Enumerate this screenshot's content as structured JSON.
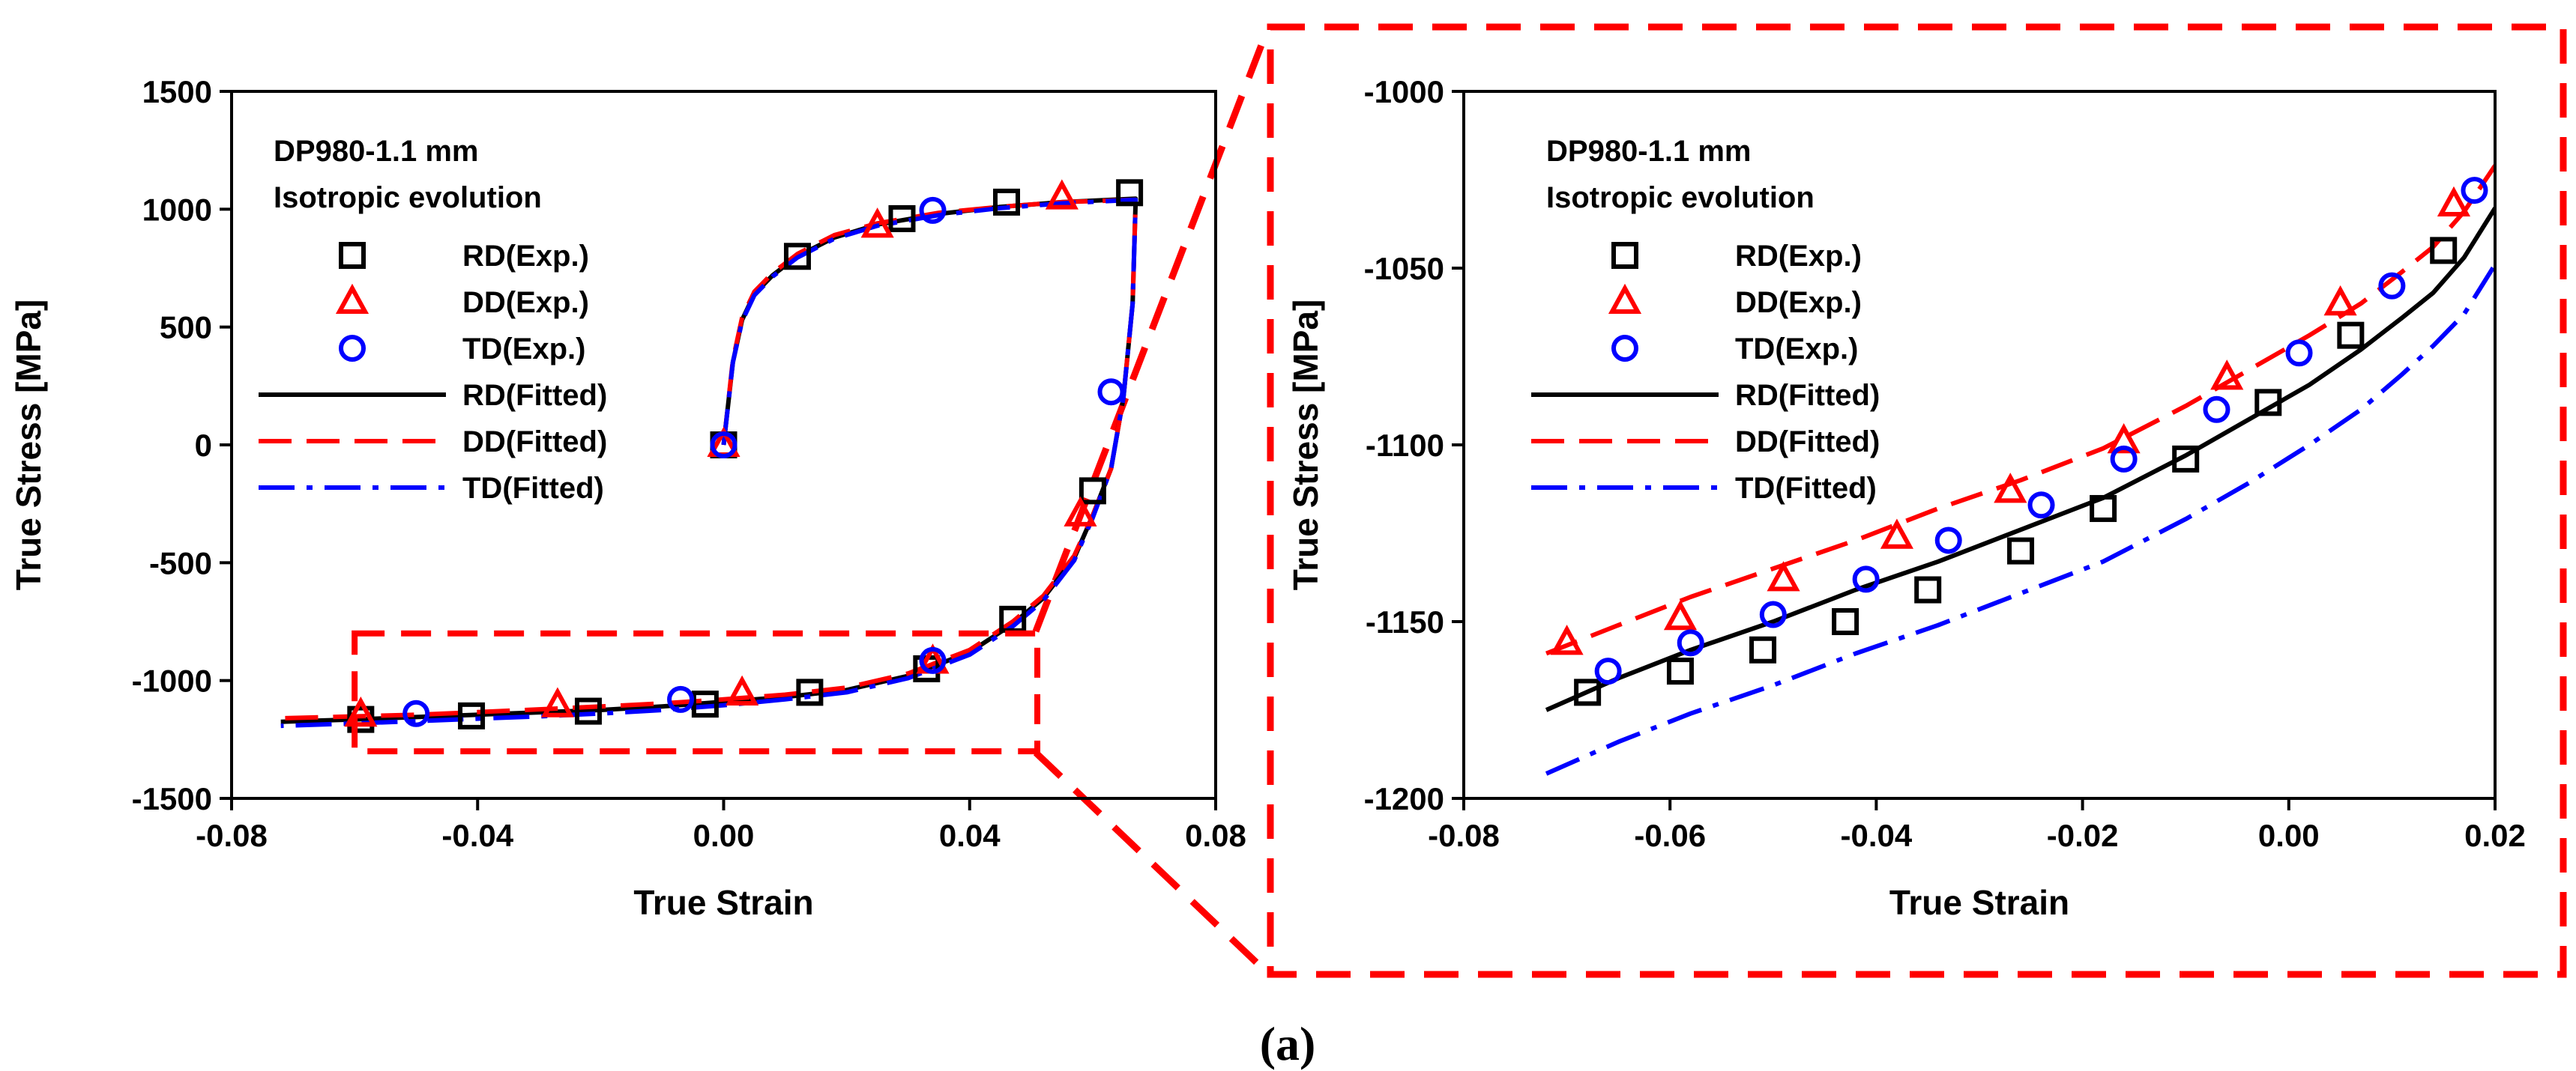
{
  "figure": {
    "caption": "(a)"
  },
  "colors": {
    "rd": "#000000",
    "dd": "#ff0000",
    "td": "#0000ff",
    "zoom_frame": "#ff0000"
  },
  "chart_data": [
    {
      "type": "line",
      "id": "full-cycle",
      "title": "",
      "xlabel": "True Strain",
      "ylabel": "True Stress [MPa]",
      "xlim": [
        -0.08,
        0.08
      ],
      "ylim": [
        -1500,
        1500
      ],
      "xticks": [
        -0.08,
        -0.04,
        0.0,
        0.04,
        0.08
      ],
      "xtick_labels": [
        "-0.08",
        "-0.04",
        "0.00",
        "0.04",
        "0.08"
      ],
      "yticks": [
        -1500,
        -1000,
        -500,
        0,
        500,
        1000,
        1500
      ],
      "ytick_labels": [
        "-1500",
        "-1000",
        "-500",
        "0",
        "500",
        "1000",
        "1500"
      ],
      "annotation": [
        "DP980-1.1 mm",
        "Isotropic evolution"
      ],
      "legend_position": "top-left",
      "zoom_box": {
        "x": [
          -0.06,
          0.051
        ],
        "y": [
          -1300,
          -800
        ]
      },
      "series": [
        {
          "name": "RD(Exp.)",
          "kind": "scatter",
          "marker": "square",
          "color": "#000000",
          "points": [
            [
              0.0,
              0
            ],
            [
              0.012,
              800
            ],
            [
              0.029,
              960
            ],
            [
              0.046,
              1030
            ],
            [
              0.066,
              1070
            ],
            [
              0.06,
              -195
            ],
            [
              0.047,
              -740
            ],
            [
              0.033,
              -950
            ],
            [
              0.014,
              -1050
            ],
            [
              -0.003,
              -1100
            ],
            [
              -0.022,
              -1130
            ],
            [
              -0.041,
              -1150
            ],
            [
              -0.059,
              -1165
            ]
          ]
        },
        {
          "name": "DD(Exp.)",
          "kind": "scatter",
          "marker": "triangle",
          "color": "#ff0000",
          "points": [
            [
              0.0,
              0
            ],
            [
              0.025,
              930
            ],
            [
              0.055,
              1050
            ],
            [
              0.058,
              -295
            ],
            [
              0.034,
              -920
            ],
            [
              0.003,
              -1055
            ],
            [
              -0.027,
              -1105
            ],
            [
              -0.059,
              -1145
            ]
          ]
        },
        {
          "name": "TD(Exp.)",
          "kind": "scatter",
          "marker": "circle",
          "color": "#0000ff",
          "points": [
            [
              0.0,
              0
            ],
            [
              0.034,
              995
            ],
            [
              0.063,
              225
            ],
            [
              0.034,
              -915
            ],
            [
              -0.007,
              -1080
            ],
            [
              -0.05,
              -1140
            ]
          ]
        },
        {
          "name": "RD(Fitted)",
          "kind": "line",
          "dash": "solid",
          "color": "#000000",
          "points": [
            [
              0.0,
              0
            ],
            [
              0.0015,
              350
            ],
            [
              0.003,
              530
            ],
            [
              0.005,
              640
            ],
            [
              0.008,
              720
            ],
            [
              0.012,
              800
            ],
            [
              0.018,
              880
            ],
            [
              0.025,
              935
            ],
            [
              0.035,
              980
            ],
            [
              0.045,
              1010
            ],
            [
              0.055,
              1030
            ],
            [
              0.067,
              1045
            ],
            [
              0.0665,
              600
            ],
            [
              0.065,
              200
            ],
            [
              0.063,
              -100
            ],
            [
              0.06,
              -300
            ],
            [
              0.057,
              -480
            ],
            [
              0.052,
              -650
            ],
            [
              0.047,
              -760
            ],
            [
              0.04,
              -880
            ],
            [
              0.03,
              -980
            ],
            [
              0.02,
              -1040
            ],
            [
              0.01,
              -1070
            ],
            [
              0.0,
              -1090
            ],
            [
              -0.01,
              -1110
            ],
            [
              -0.02,
              -1125
            ],
            [
              -0.03,
              -1135
            ],
            [
              -0.04,
              -1145
            ],
            [
              -0.05,
              -1155
            ],
            [
              -0.06,
              -1165
            ],
            [
              -0.072,
              -1175
            ]
          ]
        },
        {
          "name": "DD(Fitted)",
          "kind": "line",
          "dash": "dashed",
          "color": "#ff0000",
          "points": [
            [
              0.0,
              0
            ],
            [
              0.0015,
              360
            ],
            [
              0.003,
              540
            ],
            [
              0.005,
              650
            ],
            [
              0.008,
              730
            ],
            [
              0.012,
              810
            ],
            [
              0.018,
              890
            ],
            [
              0.025,
              940
            ],
            [
              0.035,
              985
            ],
            [
              0.045,
              1010
            ],
            [
              0.055,
              1030
            ],
            [
              0.067,
              1040
            ],
            [
              0.0665,
              600
            ],
            [
              0.065,
              200
            ],
            [
              0.063,
              -100
            ],
            [
              0.06,
              -300
            ],
            [
              0.057,
              -470
            ],
            [
              0.052,
              -640
            ],
            [
              0.047,
              -750
            ],
            [
              0.04,
              -870
            ],
            [
              0.03,
              -970
            ],
            [
              0.02,
              -1030
            ],
            [
              0.01,
              -1060
            ],
            [
              0.0,
              -1080
            ],
            [
              -0.01,
              -1097
            ],
            [
              -0.02,
              -1110
            ],
            [
              -0.03,
              -1122
            ],
            [
              -0.04,
              -1134
            ],
            [
              -0.05,
              -1145
            ],
            [
              -0.06,
              -1152
            ],
            [
              -0.072,
              -1160
            ]
          ]
        },
        {
          "name": "TD(Fitted)",
          "kind": "line",
          "dash": "dashdot",
          "color": "#0000ff",
          "points": [
            [
              0.0,
              0
            ],
            [
              0.0015,
              350
            ],
            [
              0.003,
              525
            ],
            [
              0.005,
              635
            ],
            [
              0.008,
              715
            ],
            [
              0.012,
              795
            ],
            [
              0.018,
              875
            ],
            [
              0.025,
              930
            ],
            [
              0.035,
              975
            ],
            [
              0.045,
              1005
            ],
            [
              0.055,
              1025
            ],
            [
              0.067,
              1040
            ],
            [
              0.0665,
              600
            ],
            [
              0.065,
              200
            ],
            [
              0.063,
              -100
            ],
            [
              0.06,
              -310
            ],
            [
              0.057,
              -490
            ],
            [
              0.052,
              -660
            ],
            [
              0.047,
              -770
            ],
            [
              0.04,
              -890
            ],
            [
              0.03,
              -990
            ],
            [
              0.02,
              -1050
            ],
            [
              0.01,
              -1080
            ],
            [
              0.0,
              -1105
            ],
            [
              -0.01,
              -1125
            ],
            [
              -0.02,
              -1140
            ],
            [
              -0.03,
              -1152
            ],
            [
              -0.04,
              -1162
            ],
            [
              -0.05,
              -1172
            ],
            [
              -0.06,
              -1182
            ],
            [
              -0.072,
              -1192
            ]
          ]
        }
      ]
    },
    {
      "type": "line",
      "id": "zoom-compression",
      "title": "",
      "xlabel": "True Strain",
      "ylabel": "True Stress [MPa]",
      "xlim": [
        -0.08,
        0.02
      ],
      "ylim": [
        -1200,
        -1000
      ],
      "xticks": [
        -0.08,
        -0.06,
        -0.04,
        -0.02,
        0.0,
        0.02
      ],
      "xtick_labels": [
        "-0.08",
        "-0.06",
        "-0.04",
        "-0.02",
        "0.00",
        "0.02"
      ],
      "yticks": [
        -1200,
        -1150,
        -1100,
        -1050,
        -1000
      ],
      "ytick_labels": [
        "-1200",
        "-1150",
        "-1100",
        "-1050",
        "-1000"
      ],
      "annotation": [
        "DP980-1.1 mm",
        "Isotropic evolution"
      ],
      "legend_position": "top-left",
      "series": [
        {
          "name": "RD(Exp.)",
          "kind": "scatter",
          "marker": "square",
          "color": "#000000",
          "points": [
            [
              -0.068,
              -1170
            ],
            [
              -0.059,
              -1164
            ],
            [
              -0.051,
              -1158
            ],
            [
              -0.043,
              -1150
            ],
            [
              -0.035,
              -1141
            ],
            [
              -0.026,
              -1130
            ],
            [
              -0.018,
              -1118
            ],
            [
              -0.01,
              -1104
            ],
            [
              -0.002,
              -1088
            ],
            [
              0.006,
              -1069
            ],
            [
              0.015,
              -1045
            ]
          ]
        },
        {
          "name": "DD(Exp.)",
          "kind": "scatter",
          "marker": "triangle",
          "color": "#ff0000",
          "points": [
            [
              -0.07,
              -1156
            ],
            [
              -0.059,
              -1149
            ],
            [
              -0.049,
              -1138
            ],
            [
              -0.038,
              -1126
            ],
            [
              -0.027,
              -1113
            ],
            [
              -0.016,
              -1099
            ],
            [
              -0.006,
              -1081
            ],
            [
              0.005,
              -1060
            ],
            [
              0.016,
              -1032
            ]
          ]
        },
        {
          "name": "TD(Exp.)",
          "kind": "scatter",
          "marker": "circle",
          "color": "#0000ff",
          "points": [
            [
              -0.066,
              -1164
            ],
            [
              -0.058,
              -1156
            ],
            [
              -0.05,
              -1148
            ],
            [
              -0.041,
              -1138
            ],
            [
              -0.033,
              -1127
            ],
            [
              -0.024,
              -1117
            ],
            [
              -0.016,
              -1104
            ],
            [
              -0.007,
              -1090
            ],
            [
              0.001,
              -1074
            ],
            [
              0.01,
              -1055
            ],
            [
              0.018,
              -1028
            ]
          ]
        },
        {
          "name": "RD(Fitted)",
          "kind": "line",
          "dash": "solid",
          "color": "#000000",
          "points": [
            [
              -0.072,
              -1175
            ],
            [
              -0.065,
              -1166
            ],
            [
              -0.058,
              -1158
            ],
            [
              -0.05,
              -1150
            ],
            [
              -0.042,
              -1141
            ],
            [
              -0.034,
              -1133
            ],
            [
              -0.026,
              -1124
            ],
            [
              -0.018,
              -1115
            ],
            [
              -0.01,
              -1103
            ],
            [
              -0.004,
              -1093
            ],
            [
              0.002,
              -1083
            ],
            [
              0.007,
              -1073
            ],
            [
              0.011,
              -1064
            ],
            [
              0.014,
              -1057
            ],
            [
              0.017,
              -1047
            ],
            [
              0.02,
              -1033
            ]
          ]
        },
        {
          "name": "DD(Fitted)",
          "kind": "line",
          "dash": "dashed",
          "color": "#ff0000",
          "points": [
            [
              -0.072,
              -1159
            ],
            [
              -0.065,
              -1151
            ],
            [
              -0.058,
              -1143
            ],
            [
              -0.05,
              -1135
            ],
            [
              -0.042,
              -1127
            ],
            [
              -0.034,
              -1118
            ],
            [
              -0.026,
              -1110
            ],
            [
              -0.018,
              -1101
            ],
            [
              -0.01,
              -1089
            ],
            [
              -0.004,
              -1079
            ],
            [
              0.002,
              -1069
            ],
            [
              0.007,
              -1060
            ],
            [
              0.011,
              -1051
            ],
            [
              0.014,
              -1044
            ],
            [
              0.017,
              -1034
            ],
            [
              0.02,
              -1021
            ]
          ]
        },
        {
          "name": "TD(Fitted)",
          "kind": "line",
          "dash": "dashdot",
          "color": "#0000ff",
          "points": [
            [
              -0.072,
              -1193
            ],
            [
              -0.065,
              -1184
            ],
            [
              -0.058,
              -1176
            ],
            [
              -0.05,
              -1168
            ],
            [
              -0.042,
              -1159
            ],
            [
              -0.034,
              -1151
            ],
            [
              -0.026,
              -1142
            ],
            [
              -0.018,
              -1133
            ],
            [
              -0.01,
              -1121
            ],
            [
              -0.004,
              -1111
            ],
            [
              0.002,
              -1100
            ],
            [
              0.007,
              -1090
            ],
            [
              0.011,
              -1080
            ],
            [
              0.014,
              -1072
            ],
            [
              0.017,
              -1063
            ],
            [
              0.02,
              -1049
            ]
          ]
        }
      ]
    }
  ]
}
